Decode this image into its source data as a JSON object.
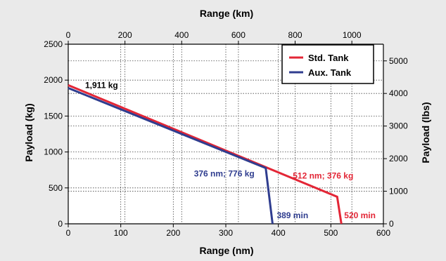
{
  "chart_data": {
    "type": "line",
    "title": "",
    "xlabel": "Range (nm)",
    "ylabel": "Payload (kg)",
    "x2label": "Range (km)",
    "y2label": "Payload (lbs)",
    "xlim": [
      0,
      600
    ],
    "ylim": [
      0,
      2500
    ],
    "x2lim_km": [
      0,
      1111.2
    ],
    "y2lim_lbs": [
      0,
      5511.56
    ],
    "xticks": [
      "0",
      "100",
      "200",
      "300",
      "400",
      "500",
      "600"
    ],
    "yticks": [
      "0",
      "500",
      "1000",
      "1500",
      "2000",
      "2500"
    ],
    "x2ticks": [
      "0",
      "200",
      "400",
      "600",
      "800",
      "1000"
    ],
    "y2ticks": [
      "0",
      "1000",
      "2000",
      "3000",
      "4000",
      "5000"
    ],
    "grid": true,
    "legend_position": "top-right",
    "series": [
      {
        "name": "Std. Tank",
        "color": "#e32636",
        "x": [
          0,
          512,
          520
        ],
        "y": [
          1930,
          376,
          0
        ]
      },
      {
        "name": "Aux. Tank",
        "color": "#2f3d8f",
        "x": [
          0,
          376,
          389
        ],
        "y": [
          1890,
          776,
          0
        ]
      }
    ],
    "annotations": [
      {
        "text": "1,911 kg",
        "color": "#000000"
      },
      {
        "text": "376 nm; 776 kg",
        "color": "#2f3d8f"
      },
      {
        "text": "512 nm; 376 kg",
        "color": "#e32636"
      },
      {
        "text": "389 min",
        "color": "#2f3d8f"
      },
      {
        "text": "520 min",
        "color": "#e32636"
      }
    ]
  }
}
